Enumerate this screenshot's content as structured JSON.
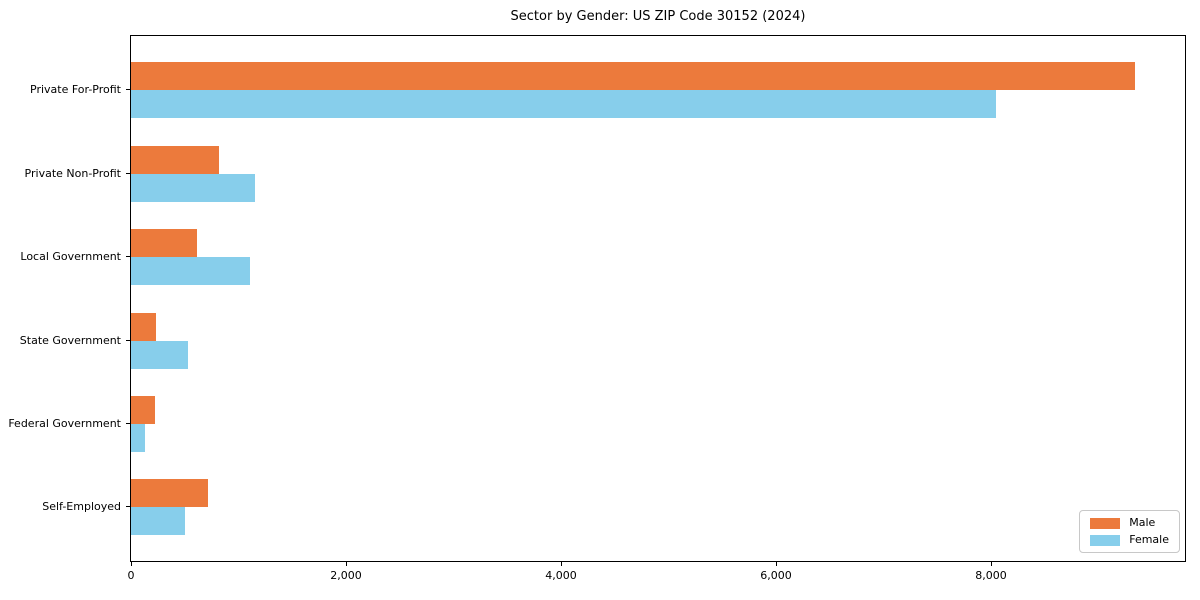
{
  "title": "Sector by Gender: US ZIP Code 30152 (2024)",
  "colors": {
    "male": "#EC7A3C",
    "female": "#87CEEB",
    "axis": "#000000",
    "background": "#FFFFFF"
  },
  "chart_data": {
    "type": "bar",
    "orientation": "horizontal",
    "title": "Sector by Gender: US ZIP Code 30152 (2024)",
    "categories": [
      "Private For-Profit",
      "Private Non-Profit",
      "Local Government",
      "State Government",
      "Federal Government",
      "Self-Employed"
    ],
    "series": [
      {
        "name": "Male",
        "color": "#EC7A3C",
        "values": [
          9340,
          820,
          610,
          230,
          225,
          720
        ]
      },
      {
        "name": "Female",
        "color": "#87CEEB",
        "values": [
          8050,
          1150,
          1110,
          535,
          130,
          500
        ]
      }
    ],
    "xlabel": "",
    "ylabel": "",
    "xlim": [
      0,
      9810
    ],
    "xticks": [
      0,
      2000,
      4000,
      6000,
      8000
    ],
    "xtick_labels": [
      "0",
      "2,000",
      "4,000",
      "6,000",
      "8,000"
    ],
    "grid": false,
    "legend": {
      "position": "lower right",
      "entries": [
        "Male",
        "Female"
      ]
    }
  }
}
